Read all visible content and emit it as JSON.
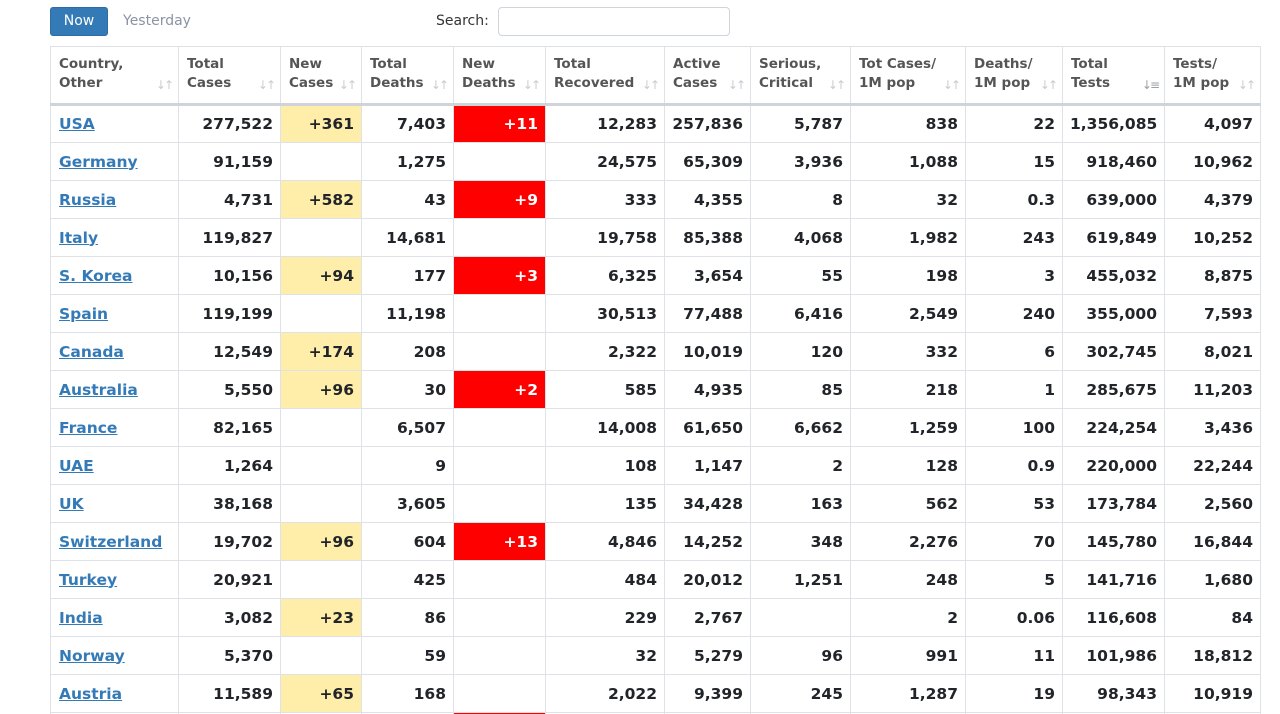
{
  "tabs": {
    "now": "Now",
    "yesterday": "Yesterday"
  },
  "search": {
    "label": "Search:",
    "value": "",
    "placeholder": ""
  },
  "columns": [
    {
      "line1": "Country,",
      "line2": "Other"
    },
    {
      "line1": "Total",
      "line2": "Cases"
    },
    {
      "line1": "New",
      "line2": "Cases"
    },
    {
      "line1": "Total",
      "line2": "Deaths"
    },
    {
      "line1": "New",
      "line2": "Deaths"
    },
    {
      "line1": "Total",
      "line2": "Recovered"
    },
    {
      "line1": "Active",
      "line2": "Cases"
    },
    {
      "line1": "Serious,",
      "line2": "Critical"
    },
    {
      "line1": "Tot Cases/",
      "line2": "1M pop"
    },
    {
      "line1": "Deaths/",
      "line2": "1M pop"
    },
    {
      "line1": "Total",
      "line2": "Tests"
    },
    {
      "line1": "Tests/",
      "line2": "1M pop"
    }
  ],
  "sorted_column": "Total Tests",
  "colors": {
    "new_cases_highlight": "#ffeeaa",
    "new_deaths_highlight": "#ff0000",
    "link": "#337ab7",
    "tab_active": "#337ab7"
  },
  "rows": [
    {
      "country": "USA",
      "total_cases": "277,522",
      "new_cases": "+361",
      "total_deaths": "7,403",
      "new_deaths": "+11",
      "total_recovered": "12,283",
      "active_cases": "257,836",
      "serious": "5,787",
      "cases_per_1m": "838",
      "deaths_per_1m": "22",
      "total_tests": "1,356,085",
      "tests_per_1m": "4,097"
    },
    {
      "country": "Germany",
      "total_cases": "91,159",
      "new_cases": "",
      "total_deaths": "1,275",
      "new_deaths": "",
      "total_recovered": "24,575",
      "active_cases": "65,309",
      "serious": "3,936",
      "cases_per_1m": "1,088",
      "deaths_per_1m": "15",
      "total_tests": "918,460",
      "tests_per_1m": "10,962"
    },
    {
      "country": "Russia",
      "total_cases": "4,731",
      "new_cases": "+582",
      "total_deaths": "43",
      "new_deaths": "+9",
      "total_recovered": "333",
      "active_cases": "4,355",
      "serious": "8",
      "cases_per_1m": "32",
      "deaths_per_1m": "0.3",
      "total_tests": "639,000",
      "tests_per_1m": "4,379"
    },
    {
      "country": "Italy",
      "total_cases": "119,827",
      "new_cases": "",
      "total_deaths": "14,681",
      "new_deaths": "",
      "total_recovered": "19,758",
      "active_cases": "85,388",
      "serious": "4,068",
      "cases_per_1m": "1,982",
      "deaths_per_1m": "243",
      "total_tests": "619,849",
      "tests_per_1m": "10,252"
    },
    {
      "country": "S. Korea",
      "total_cases": "10,156",
      "new_cases": "+94",
      "total_deaths": "177",
      "new_deaths": "+3",
      "total_recovered": "6,325",
      "active_cases": "3,654",
      "serious": "55",
      "cases_per_1m": "198",
      "deaths_per_1m": "3",
      "total_tests": "455,032",
      "tests_per_1m": "8,875"
    },
    {
      "country": "Spain",
      "total_cases": "119,199",
      "new_cases": "",
      "total_deaths": "11,198",
      "new_deaths": "",
      "total_recovered": "30,513",
      "active_cases": "77,488",
      "serious": "6,416",
      "cases_per_1m": "2,549",
      "deaths_per_1m": "240",
      "total_tests": "355,000",
      "tests_per_1m": "7,593"
    },
    {
      "country": "Canada",
      "total_cases": "12,549",
      "new_cases": "+174",
      "total_deaths": "208",
      "new_deaths": "",
      "total_recovered": "2,322",
      "active_cases": "10,019",
      "serious": "120",
      "cases_per_1m": "332",
      "deaths_per_1m": "6",
      "total_tests": "302,745",
      "tests_per_1m": "8,021"
    },
    {
      "country": "Australia",
      "total_cases": "5,550",
      "new_cases": "+96",
      "total_deaths": "30",
      "new_deaths": "+2",
      "total_recovered": "585",
      "active_cases": "4,935",
      "serious": "85",
      "cases_per_1m": "218",
      "deaths_per_1m": "1",
      "total_tests": "285,675",
      "tests_per_1m": "11,203"
    },
    {
      "country": "France",
      "total_cases": "82,165",
      "new_cases": "",
      "total_deaths": "6,507",
      "new_deaths": "",
      "total_recovered": "14,008",
      "active_cases": "61,650",
      "serious": "6,662",
      "cases_per_1m": "1,259",
      "deaths_per_1m": "100",
      "total_tests": "224,254",
      "tests_per_1m": "3,436"
    },
    {
      "country": "UAE",
      "total_cases": "1,264",
      "new_cases": "",
      "total_deaths": "9",
      "new_deaths": "",
      "total_recovered": "108",
      "active_cases": "1,147",
      "serious": "2",
      "cases_per_1m": "128",
      "deaths_per_1m": "0.9",
      "total_tests": "220,000",
      "tests_per_1m": "22,244"
    },
    {
      "country": "UK",
      "total_cases": "38,168",
      "new_cases": "",
      "total_deaths": "3,605",
      "new_deaths": "",
      "total_recovered": "135",
      "active_cases": "34,428",
      "serious": "163",
      "cases_per_1m": "562",
      "deaths_per_1m": "53",
      "total_tests": "173,784",
      "tests_per_1m": "2,560"
    },
    {
      "country": "Switzerland",
      "total_cases": "19,702",
      "new_cases": "+96",
      "total_deaths": "604",
      "new_deaths": "+13",
      "total_recovered": "4,846",
      "active_cases": "14,252",
      "serious": "348",
      "cases_per_1m": "2,276",
      "deaths_per_1m": "70",
      "total_tests": "145,780",
      "tests_per_1m": "16,844"
    },
    {
      "country": "Turkey",
      "total_cases": "20,921",
      "new_cases": "",
      "total_deaths": "425",
      "new_deaths": "",
      "total_recovered": "484",
      "active_cases": "20,012",
      "serious": "1,251",
      "cases_per_1m": "248",
      "deaths_per_1m": "5",
      "total_tests": "141,716",
      "tests_per_1m": "1,680"
    },
    {
      "country": "India",
      "total_cases": "3,082",
      "new_cases": "+23",
      "total_deaths": "86",
      "new_deaths": "",
      "total_recovered": "229",
      "active_cases": "2,767",
      "serious": "",
      "cases_per_1m": "2",
      "deaths_per_1m": "0.06",
      "total_tests": "116,608",
      "tests_per_1m": "84"
    },
    {
      "country": "Norway",
      "total_cases": "5,370",
      "new_cases": "",
      "total_deaths": "59",
      "new_deaths": "",
      "total_recovered": "32",
      "active_cases": "5,279",
      "serious": "96",
      "cases_per_1m": "991",
      "deaths_per_1m": "11",
      "total_tests": "101,986",
      "tests_per_1m": "18,812"
    },
    {
      "country": "Austria",
      "total_cases": "11,589",
      "new_cases": "+65",
      "total_deaths": "168",
      "new_deaths": "",
      "total_recovered": "2,022",
      "active_cases": "9,399",
      "serious": "245",
      "cases_per_1m": "1,287",
      "deaths_per_1m": "19",
      "total_tests": "98,343",
      "tests_per_1m": "10,919"
    }
  ]
}
